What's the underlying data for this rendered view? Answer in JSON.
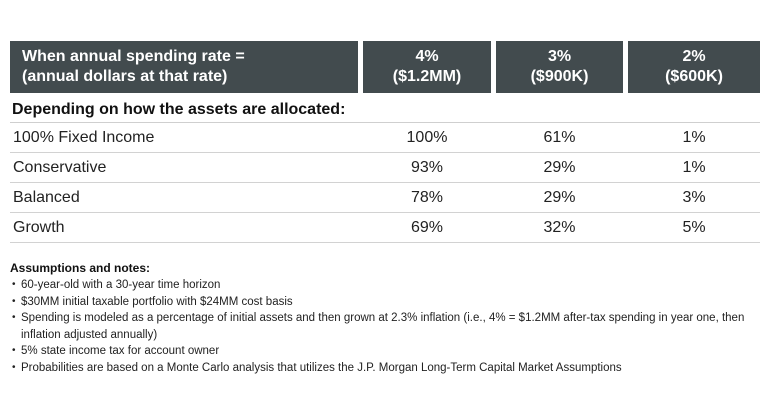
{
  "table": {
    "header": {
      "main_line1": "When annual spending rate =",
      "main_line2": "(annual dollars at that rate)",
      "columns": [
        {
          "rate": "4%",
          "dollars": "($1.2MM)"
        },
        {
          "rate": "3%",
          "dollars": "($900K)"
        },
        {
          "rate": "2%",
          "dollars": "($600K)"
        }
      ]
    },
    "subheader": "Depending on how the assets are allocated:",
    "rows": [
      {
        "label": "100% Fixed Income",
        "values": [
          "100%",
          "61%",
          "1%"
        ]
      },
      {
        "label": "Conservative",
        "values": [
          "93%",
          "29%",
          "1%"
        ]
      },
      {
        "label": "Balanced",
        "values": [
          "78%",
          "29%",
          "3%"
        ]
      },
      {
        "label": "Growth",
        "values": [
          "69%",
          "32%",
          "5%"
        ]
      }
    ]
  },
  "notes": {
    "title": "Assumptions and notes:",
    "bullet": "•",
    "items": [
      "60-year-old with a 30-year time horizon",
      "$30MM initial taxable portfolio with $24MM cost basis",
      "Spending is modeled as a percentage of initial assets and then grown at 2.3% inflation (i.e., 4% = $1.2MM after-tax spending in year one, then inflation adjusted annually)",
      "5% state income tax for account owner",
      "Probabilities are based on a Monte Carlo analysis that utilizes the J.P. Morgan Long-Term Capital Market Assumptions"
    ]
  },
  "colors": {
    "header_bg": "#424b4e",
    "header_text": "#ffffff",
    "divider": "#d2d2d2",
    "body_text": "#222222"
  },
  "chart_data": {
    "type": "table",
    "title": "When annual spending rate = (annual dollars at that rate)",
    "columns": [
      "4% ($1.2MM)",
      "3% ($900K)",
      "2% ($600K)"
    ],
    "row_group_label": "Depending on how the assets are allocated:",
    "rows": [
      {
        "allocation": "100% Fixed Income",
        "probabilities_pct": [
          100,
          61,
          1
        ]
      },
      {
        "allocation": "Conservative",
        "probabilities_pct": [
          93,
          29,
          1
        ]
      },
      {
        "allocation": "Balanced",
        "probabilities_pct": [
          78,
          29,
          3
        ]
      },
      {
        "allocation": "Growth",
        "probabilities_pct": [
          69,
          32,
          5
        ]
      }
    ]
  }
}
